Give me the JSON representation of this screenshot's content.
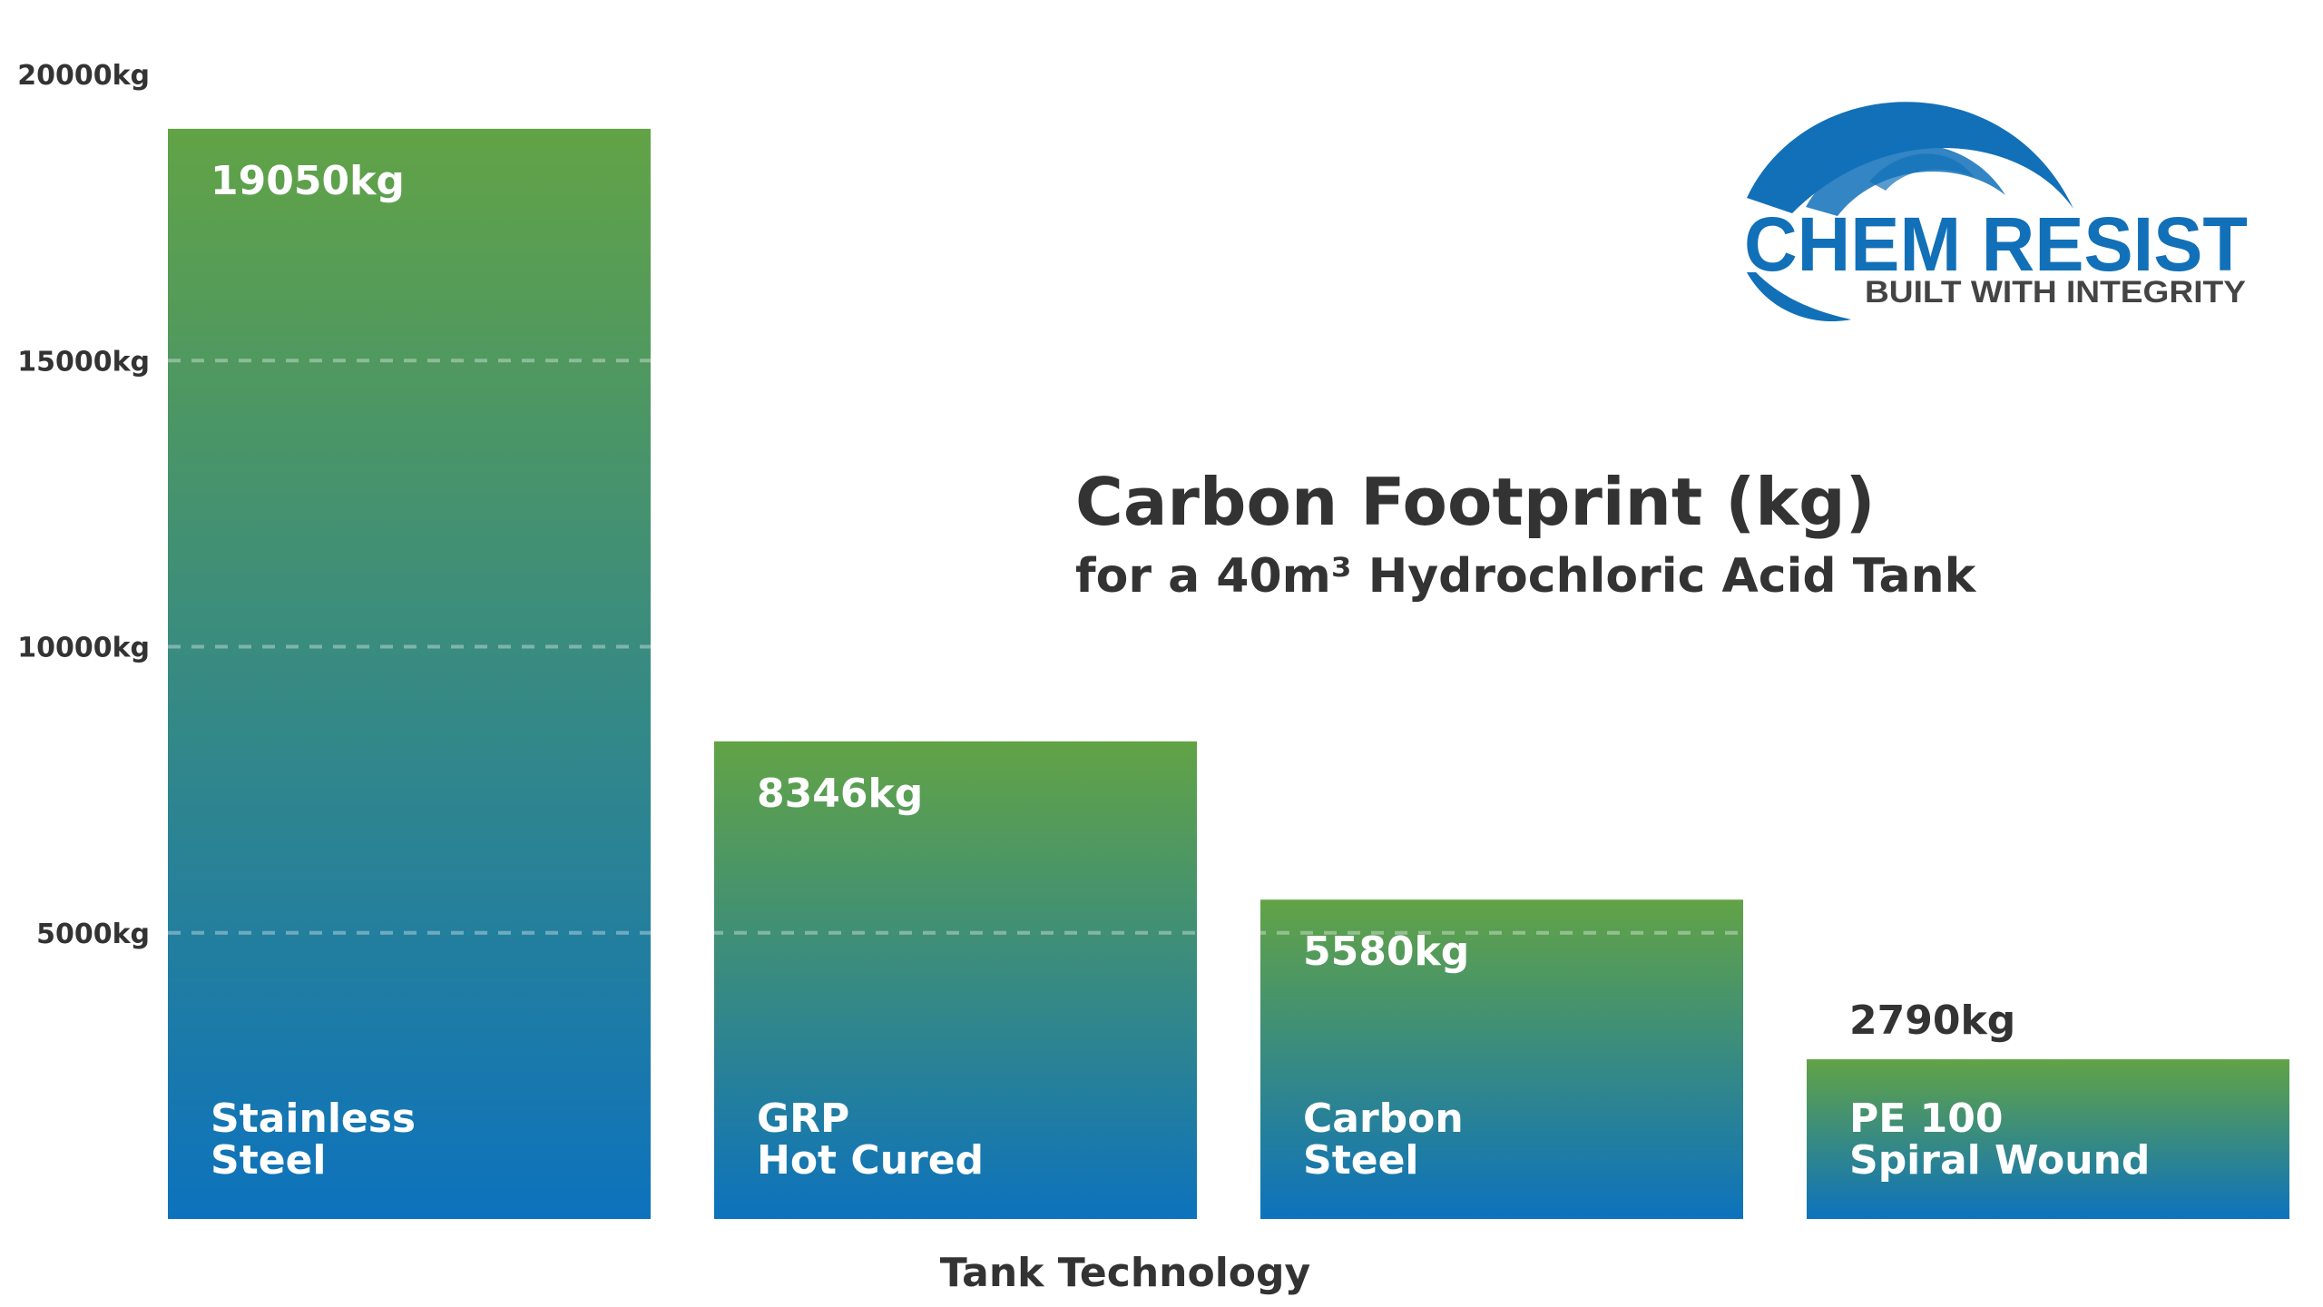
{
  "chart_data": {
    "type": "bar",
    "title": "Carbon Footprint (kg)",
    "subtitle": "for a 40m³ Hydrochloric Acid Tank",
    "xlabel": "Tank Technology",
    "ylabel": "",
    "ylim": [
      0,
      20000
    ],
    "yticks": [
      5000,
      10000,
      15000,
      20000
    ],
    "ytick_labels": [
      "5000kg",
      "10000kg",
      "15000kg",
      "20000kg"
    ],
    "grid": "horizontal dashed (5000, 10000, 15000)",
    "categories": [
      [
        "Stainless",
        "Steel"
      ],
      [
        "GRP",
        "Hot Cured"
      ],
      [
        "Carbon",
        "Steel"
      ],
      [
        "PE 100",
        "Spiral Wound"
      ]
    ],
    "values": [
      19050,
      8346,
      5580,
      2790
    ],
    "value_labels": [
      "19050kg",
      "8346kg",
      "5580kg",
      "2790kg"
    ],
    "colors": {
      "bar_top": "#62a346",
      "bar_bottom": "#0d72bd",
      "text_dark": "#333333",
      "text_light": "#ffffff",
      "logo_blue": "#1170b8",
      "logo_gray": "#444444"
    }
  },
  "logo": {
    "name": "CHEM RESIST",
    "tagline": "BUILT WITH INTEGRITY"
  }
}
